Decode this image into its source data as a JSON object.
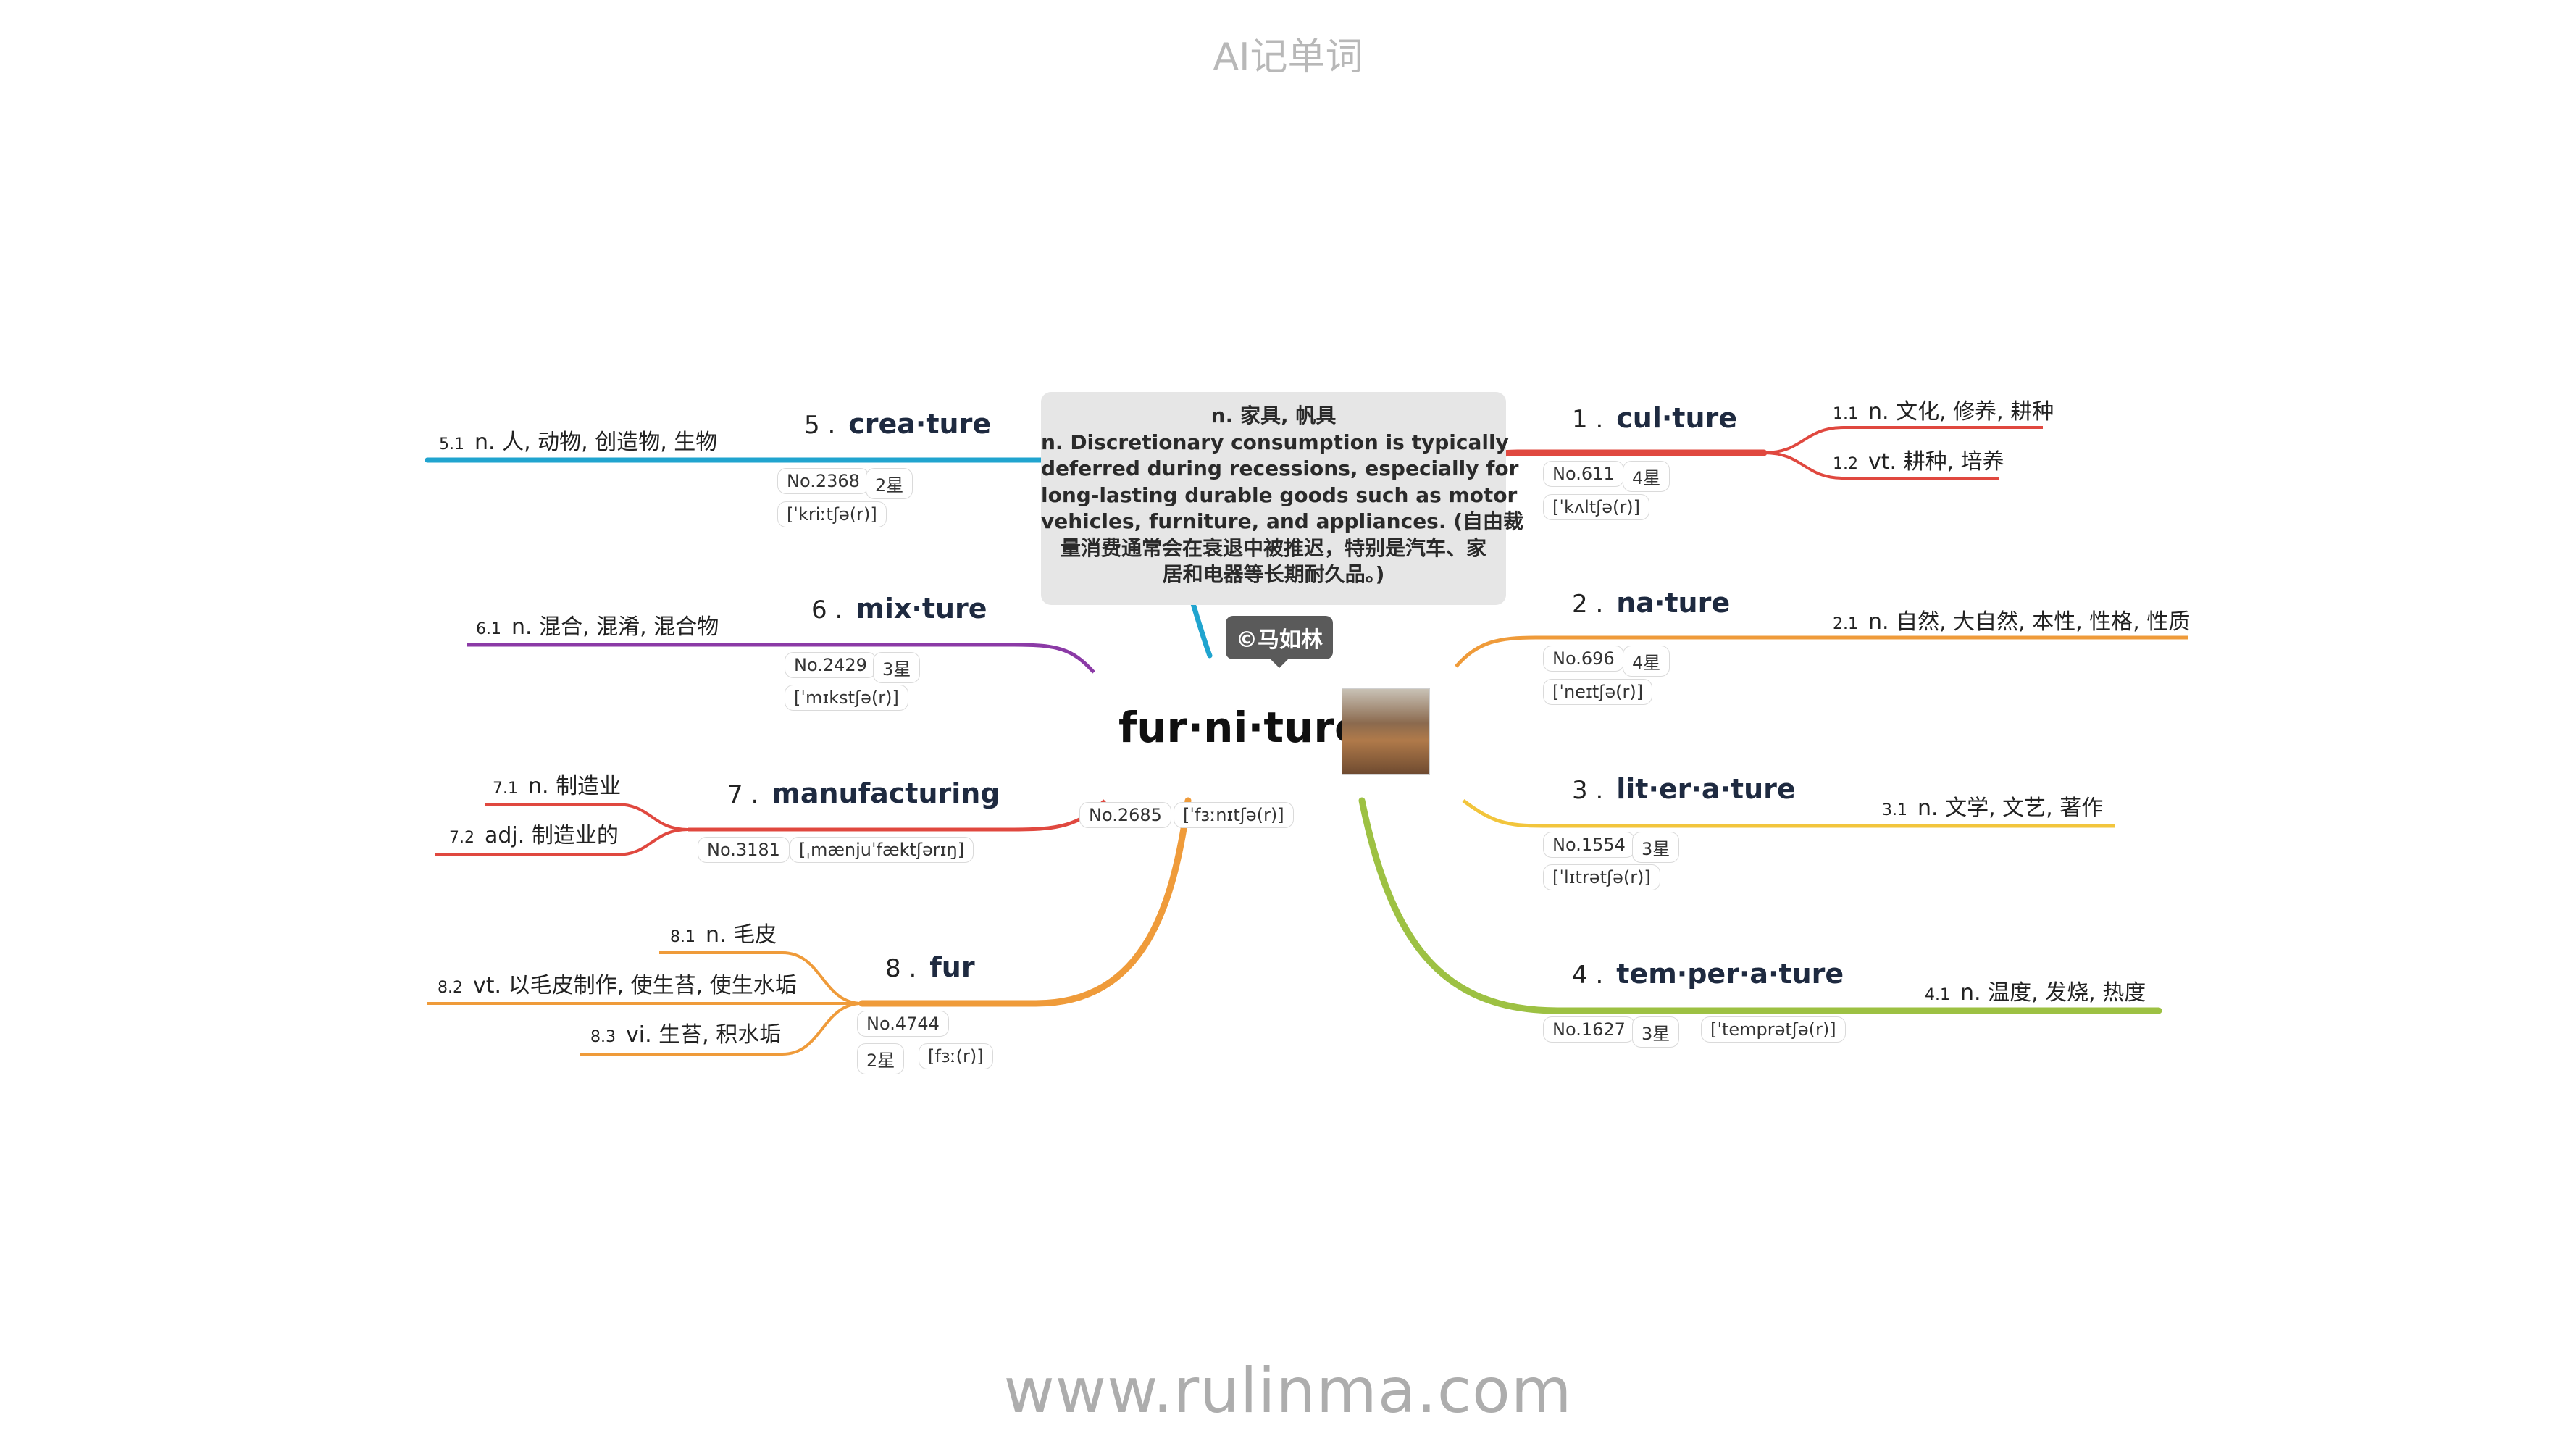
{
  "header": {
    "title": "AI记单词"
  },
  "footer": {
    "url": "www.rulinma.com"
  },
  "center": {
    "word": "fur·ni·ture",
    "no": "No.2685",
    "phonetic": "[ˈfɜːnɪtʃə(r)]",
    "copyright": "©马如林",
    "note": [
      "n. 家具, 帆具",
      "n. Discretionary consumption is typically",
      "deferred during recessions, especially for",
      "long-lasting durable goods such as motor",
      "vehicles, furniture, and appliances. (自由裁",
      "量消费通常会在衰退中被推迟，特别是汽车、家",
      "居和电器等长期耐久品。)"
    ]
  },
  "branches": [
    {
      "num": "1 .",
      "word": "cul·ture",
      "no": "No.611",
      "stars": "4星",
      "phonetic": "[ˈkʌltʃə(r)]",
      "color": "#e0483f",
      "defs": [
        {
          "n": "1.1",
          "t": "n. 文化, 修养, 耕种"
        },
        {
          "n": "1.2",
          "t": "vt. 耕种, 培养"
        }
      ]
    },
    {
      "num": "2 .",
      "word": "na·ture",
      "no": "No.696",
      "stars": "4星",
      "phonetic": "[ˈneɪtʃə(r)]",
      "color": "#ef9b3a",
      "defs": [
        {
          "n": "2.1",
          "t": "n. 自然, 大自然, 本性, 性格, 性质"
        }
      ]
    },
    {
      "num": "3 .",
      "word": "lit·er·a·ture",
      "no": "No.1554",
      "stars": "3星",
      "phonetic": "[ˈlɪtrətʃə(r)]",
      "color": "#f2c53c",
      "defs": [
        {
          "n": "3.1",
          "t": "n. 文学, 文艺, 著作"
        }
      ]
    },
    {
      "num": "4 .",
      "word": "tem·per·a·ture",
      "no": "No.1627",
      "stars": "3星",
      "phonetic": "[ˈtemprətʃə(r)]",
      "color": "#9dc143",
      "defs": [
        {
          "n": "4.1",
          "t": "n. 温度, 发烧, 热度"
        }
      ]
    },
    {
      "num": "5 .",
      "word": "crea·ture",
      "no": "No.2368",
      "stars": "2星",
      "phonetic": "[ˈkriːtʃə(r)]",
      "color": "#20a4cf",
      "defs": [
        {
          "n": "5.1",
          "t": "n. 人, 动物, 创造物, 生物"
        }
      ]
    },
    {
      "num": "6 .",
      "word": "mix·ture",
      "no": "No.2429",
      "stars": "3星",
      "phonetic": "[ˈmɪkstʃə(r)]",
      "color": "#8b3aa6",
      "defs": [
        {
          "n": "6.1",
          "t": "n. 混合, 混淆, 混合物"
        }
      ]
    },
    {
      "num": "7 .",
      "word": "manufacturing",
      "no": "No.3181",
      "phonetic": "[ˌmænjuˈfæktʃərɪŋ]",
      "color": "#e0483f",
      "defs": [
        {
          "n": "7.1",
          "t": "n. 制造业"
        },
        {
          "n": "7.2",
          "t": "adj. 制造业的"
        }
      ]
    },
    {
      "num": "8 .",
      "word": "fur",
      "no": "No.4744",
      "stars": "2星",
      "phonetic": "[fɜː(r)]",
      "color": "#ef9b3a",
      "defs": [
        {
          "n": "8.1",
          "t": "n. 毛皮"
        },
        {
          "n": "8.2",
          "t": "vt. 以毛皮制作, 使生苔, 使生水垢"
        },
        {
          "n": "8.3",
          "t": "vi. 生苔, 积水垢"
        }
      ]
    }
  ]
}
